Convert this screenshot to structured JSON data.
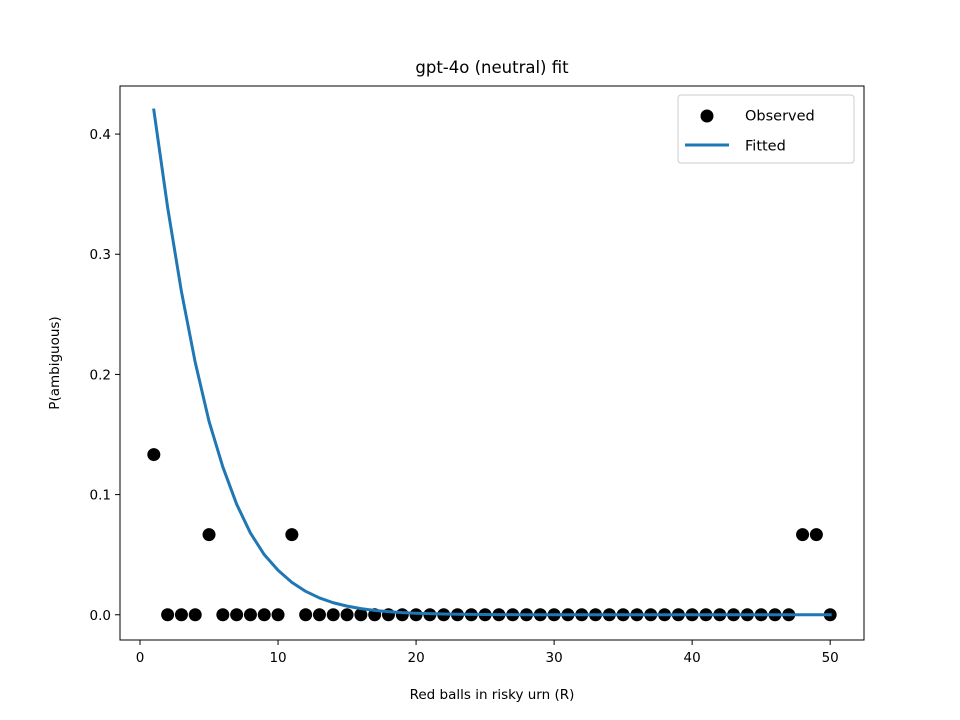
{
  "chart_data": {
    "type": "scatter",
    "title": "gpt-4o (neutral) fit",
    "xlabel": "Red balls in risky urn (R)",
    "ylabel": "P(ambiguous)",
    "xlim": [
      -1.45,
      52.45
    ],
    "ylim": [
      -0.021,
      0.44
    ],
    "xticks": [
      0,
      10,
      20,
      30,
      40,
      50
    ],
    "yticks": [
      0.0,
      0.1,
      0.2,
      0.3,
      0.4
    ],
    "xtick_labels": [
      "0",
      "10",
      "20",
      "30",
      "40",
      "50"
    ],
    "ytick_labels": [
      "0.0",
      "0.1",
      "0.2",
      "0.3",
      "0.4"
    ],
    "legend": {
      "position": "upper right",
      "entries": [
        "Observed",
        "Fitted"
      ]
    },
    "series": [
      {
        "name": "Observed",
        "kind": "scatter",
        "color": "#000000",
        "x": [
          1,
          2,
          3,
          4,
          5,
          6,
          7,
          8,
          9,
          10,
          11,
          12,
          13,
          14,
          15,
          16,
          17,
          18,
          19,
          20,
          21,
          22,
          23,
          24,
          25,
          26,
          27,
          28,
          29,
          30,
          31,
          32,
          33,
          34,
          35,
          36,
          37,
          38,
          39,
          40,
          41,
          42,
          43,
          44,
          45,
          46,
          47,
          48,
          49,
          50
        ],
        "y": [
          0.1333,
          0,
          0,
          0,
          0.0667,
          0,
          0,
          0,
          0,
          0,
          0.0667,
          0,
          0,
          0,
          0,
          0,
          0,
          0,
          0,
          0,
          0,
          0,
          0,
          0,
          0,
          0,
          0,
          0,
          0,
          0,
          0,
          0,
          0,
          0,
          0,
          0,
          0,
          0,
          0,
          0,
          0,
          0,
          0,
          0,
          0,
          0,
          0,
          0.0667,
          0.0667,
          0
        ]
      },
      {
        "name": "Fitted",
        "kind": "line",
        "color": "#1f77b4",
        "x": [
          1,
          2,
          3,
          4,
          5,
          6,
          7,
          8,
          9,
          10,
          11,
          12,
          13,
          14,
          15,
          16,
          17,
          18,
          19,
          20,
          21,
          22,
          23,
          24,
          25,
          26,
          27,
          28,
          29,
          30,
          31,
          32,
          33,
          34,
          35,
          36,
          37,
          38,
          39,
          40,
          41,
          42,
          43,
          44,
          45,
          46,
          47,
          48,
          49,
          50
        ],
        "y": [
          0.42,
          0.339,
          0.269,
          0.21,
          0.161,
          0.123,
          0.092,
          0.068,
          0.05,
          0.037,
          0.027,
          0.0195,
          0.014,
          0.01,
          0.0072,
          0.0051,
          0.0036,
          0.0026,
          0.0018,
          0.0013,
          0.0009,
          0.0006,
          0.0004,
          0.0003,
          0.0002,
          0.0001,
          0.0001,
          0,
          0,
          0,
          0,
          0,
          0,
          0,
          0,
          0,
          0,
          0,
          0,
          0,
          0,
          0,
          0,
          0,
          0,
          0,
          0,
          0,
          0,
          0
        ]
      }
    ]
  }
}
